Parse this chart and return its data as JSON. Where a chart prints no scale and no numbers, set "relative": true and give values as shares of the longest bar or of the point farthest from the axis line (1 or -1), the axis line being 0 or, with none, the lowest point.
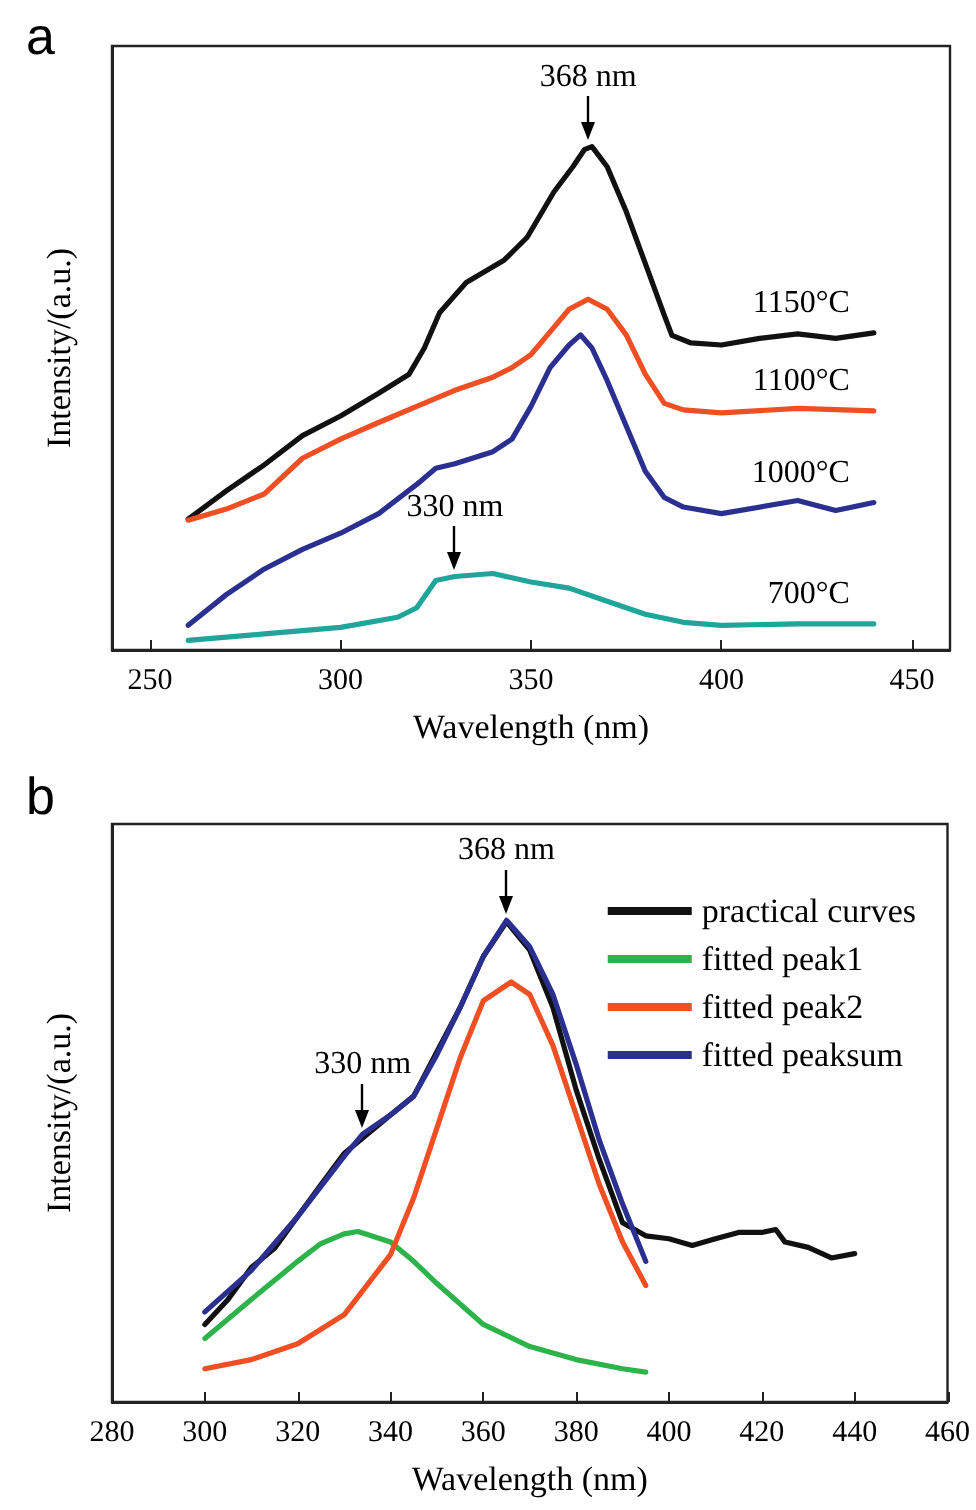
{
  "chart_data": [
    {
      "type": "line",
      "title": "a",
      "xlabel": "Wavelength (nm)",
      "ylabel": "Intensity/(a.u.)",
      "relative": true,
      "xlim": [
        240,
        460
      ],
      "xticks": [
        250,
        300,
        350,
        400,
        450
      ],
      "legend": false,
      "grid": false,
      "marker": "none",
      "line_style": "solid",
      "annotations": [
        {
          "text": "368 nm",
          "x": 365,
          "y": 1
        },
        {
          "text": "330 nm",
          "x": 330,
          "y": 0.146
        }
      ],
      "series": [
        {
          "name": "1150°C",
          "color": "#111111",
          "x": [
            260,
            270,
            280,
            290,
            300,
            310,
            318,
            322,
            326,
            333,
            343,
            349,
            356,
            361,
            364,
            366,
            370,
            375,
            380,
            385,
            387,
            392,
            400,
            410,
            420,
            430,
            440
          ],
          "values": [
            0.26,
            0.316,
            0.368,
            0.426,
            0.465,
            0.51,
            0.548,
            0.6,
            0.67,
            0.73,
            0.775,
            0.82,
            0.91,
            0.96,
            0.994,
            1,
            0.96,
            0.871,
            0.768,
            0.665,
            0.625,
            0.61,
            0.606,
            0.619,
            0.628,
            0.619,
            0.63
          ]
        },
        {
          "name": "1100°C",
          "color": "#f04e23",
          "x": [
            260,
            270,
            280,
            290,
            300,
            310,
            320,
            330,
            340,
            345,
            350,
            355,
            360,
            365,
            370,
            375,
            380,
            385,
            390,
            400,
            420,
            440
          ],
          "values": [
            0.258,
            0.28,
            0.31,
            0.381,
            0.419,
            0.452,
            0.484,
            0.516,
            0.542,
            0.561,
            0.587,
            0.632,
            0.677,
            0.697,
            0.677,
            0.626,
            0.548,
            0.49,
            0.477,
            0.471,
            0.48,
            0.475
          ]
        },
        {
          "name": "1000°C",
          "color": "#2b3090",
          "x": [
            260,
            270,
            280,
            290,
            300,
            310,
            320,
            325,
            330,
            340,
            345,
            350,
            355,
            360,
            363,
            366,
            370,
            375,
            380,
            385,
            390,
            400,
            420,
            430,
            440
          ],
          "values": [
            0.049,
            0.11,
            0.161,
            0.2,
            0.232,
            0.271,
            0.329,
            0.361,
            0.37,
            0.394,
            0.419,
            0.484,
            0.561,
            0.606,
            0.626,
            0.6,
            0.535,
            0.445,
            0.355,
            0.303,
            0.284,
            0.271,
            0.297,
            0.277,
            0.293
          ]
        },
        {
          "name": "700°C",
          "color": "#1fa59a",
          "x": [
            260,
            280,
            300,
            315,
            320,
            325,
            330,
            340,
            350,
            360,
            370,
            380,
            390,
            400,
            420,
            440
          ],
          "values": [
            0.019,
            0.032,
            0.045,
            0.065,
            0.084,
            0.138,
            0.146,
            0.152,
            0.135,
            0.123,
            0.097,
            0.071,
            0.055,
            0.049,
            0.052,
            0.052
          ]
        }
      ]
    },
    {
      "type": "line",
      "title": "b",
      "xlabel": "Wavelength (nm)",
      "ylabel": "Intensity/(a.u.)",
      "relative": true,
      "xlim": [
        280,
        460
      ],
      "xticks": [
        280,
        300,
        320,
        340,
        360,
        380,
        400,
        420,
        440,
        460
      ],
      "legend": "top right",
      "grid": false,
      "marker": "none",
      "line_style": "solid",
      "annotations": [
        {
          "text": "368 nm",
          "x": 365,
          "y": 1
        },
        {
          "text": "330 nm",
          "x": 334,
          "y": 0.556
        }
      ],
      "series": [
        {
          "name": "practical curves",
          "color": "#111111",
          "x": [
            300,
            305,
            310,
            315,
            320,
            325,
            330,
            335,
            340,
            345,
            350,
            355,
            360,
            365,
            370,
            375,
            380,
            385,
            390,
            395,
            400,
            405,
            410,
            415,
            420,
            423,
            425,
            430,
            435,
            440
          ],
          "values": [
            0.161,
            0.213,
            0.279,
            0.319,
            0.385,
            0.451,
            0.516,
            0.556,
            0.596,
            0.635,
            0.727,
            0.819,
            0.925,
            0.997,
            0.938,
            0.819,
            0.648,
            0.503,
            0.372,
            0.345,
            0.339,
            0.325,
            0.339,
            0.352,
            0.352,
            0.358,
            0.332,
            0.321,
            0.299,
            0.308
          ]
        },
        {
          "name": "fitted peak1",
          "color": "#2db34a",
          "x": [
            300,
            310,
            320,
            325,
            330,
            333,
            340,
            345,
            350,
            360,
            370,
            380,
            390,
            395
          ],
          "values": [
            0.132,
            0.213,
            0.292,
            0.329,
            0.349,
            0.354,
            0.332,
            0.292,
            0.246,
            0.161,
            0.115,
            0.088,
            0.069,
            0.062
          ]
        },
        {
          "name": "fitted peak2",
          "color": "#f04e23",
          "x": [
            300,
            310,
            320,
            330,
            340,
            345,
            350,
            355,
            360,
            366,
            370,
            375,
            380,
            385,
            390,
            395
          ],
          "values": [
            0.069,
            0.088,
            0.121,
            0.181,
            0.306,
            0.424,
            0.569,
            0.714,
            0.833,
            0.872,
            0.846,
            0.74,
            0.596,
            0.451,
            0.332,
            0.242
          ]
        },
        {
          "name": "fitted peaksum",
          "color": "#2b3090",
          "x": [
            300,
            310,
            320,
            330,
            334,
            340,
            345,
            350,
            355,
            360,
            365,
            370,
            375,
            380,
            385,
            390,
            395
          ],
          "values": [
            0.187,
            0.273,
            0.385,
            0.51,
            0.556,
            0.596,
            0.635,
            0.721,
            0.819,
            0.925,
            1,
            0.945,
            0.846,
            0.701,
            0.543,
            0.411,
            0.292
          ]
        }
      ]
    }
  ]
}
